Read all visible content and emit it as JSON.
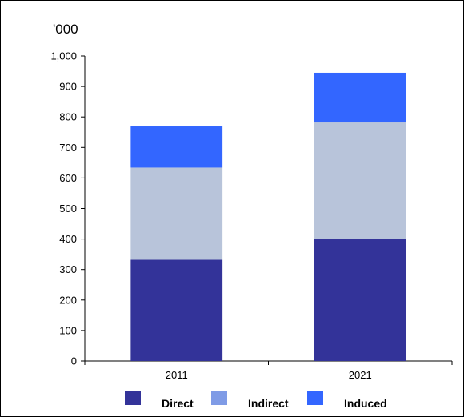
{
  "chart_data": {
    "type": "bar",
    "stacked": true,
    "unit_label": "'000",
    "categories": [
      "2011",
      "2021"
    ],
    "series": [
      {
        "name": "Direct",
        "values": [
          332,
          400
        ],
        "color": "#333399"
      },
      {
        "name": "Indirect",
        "values": [
          302,
          382
        ],
        "color": "#B8C4DA"
      },
      {
        "name": "Induced",
        "values": [
          135,
          163
        ],
        "color": "#3366FF"
      }
    ],
    "legend": {
      "placement": "bottom",
      "swatch_colors": [
        "#333399",
        "#7F9BE6",
        "#3366FF"
      ]
    },
    "ylim": [
      0,
      1000
    ],
    "yticks": [
      0,
      100,
      200,
      300,
      400,
      500,
      600,
      700,
      800,
      900,
      1000
    ],
    "ytick_labels": [
      "0",
      "100",
      "200",
      "300",
      "400",
      "500",
      "600",
      "700",
      "800",
      "900",
      "1,000"
    ],
    "grid": false,
    "xlabel": "",
    "ylabel": ""
  }
}
